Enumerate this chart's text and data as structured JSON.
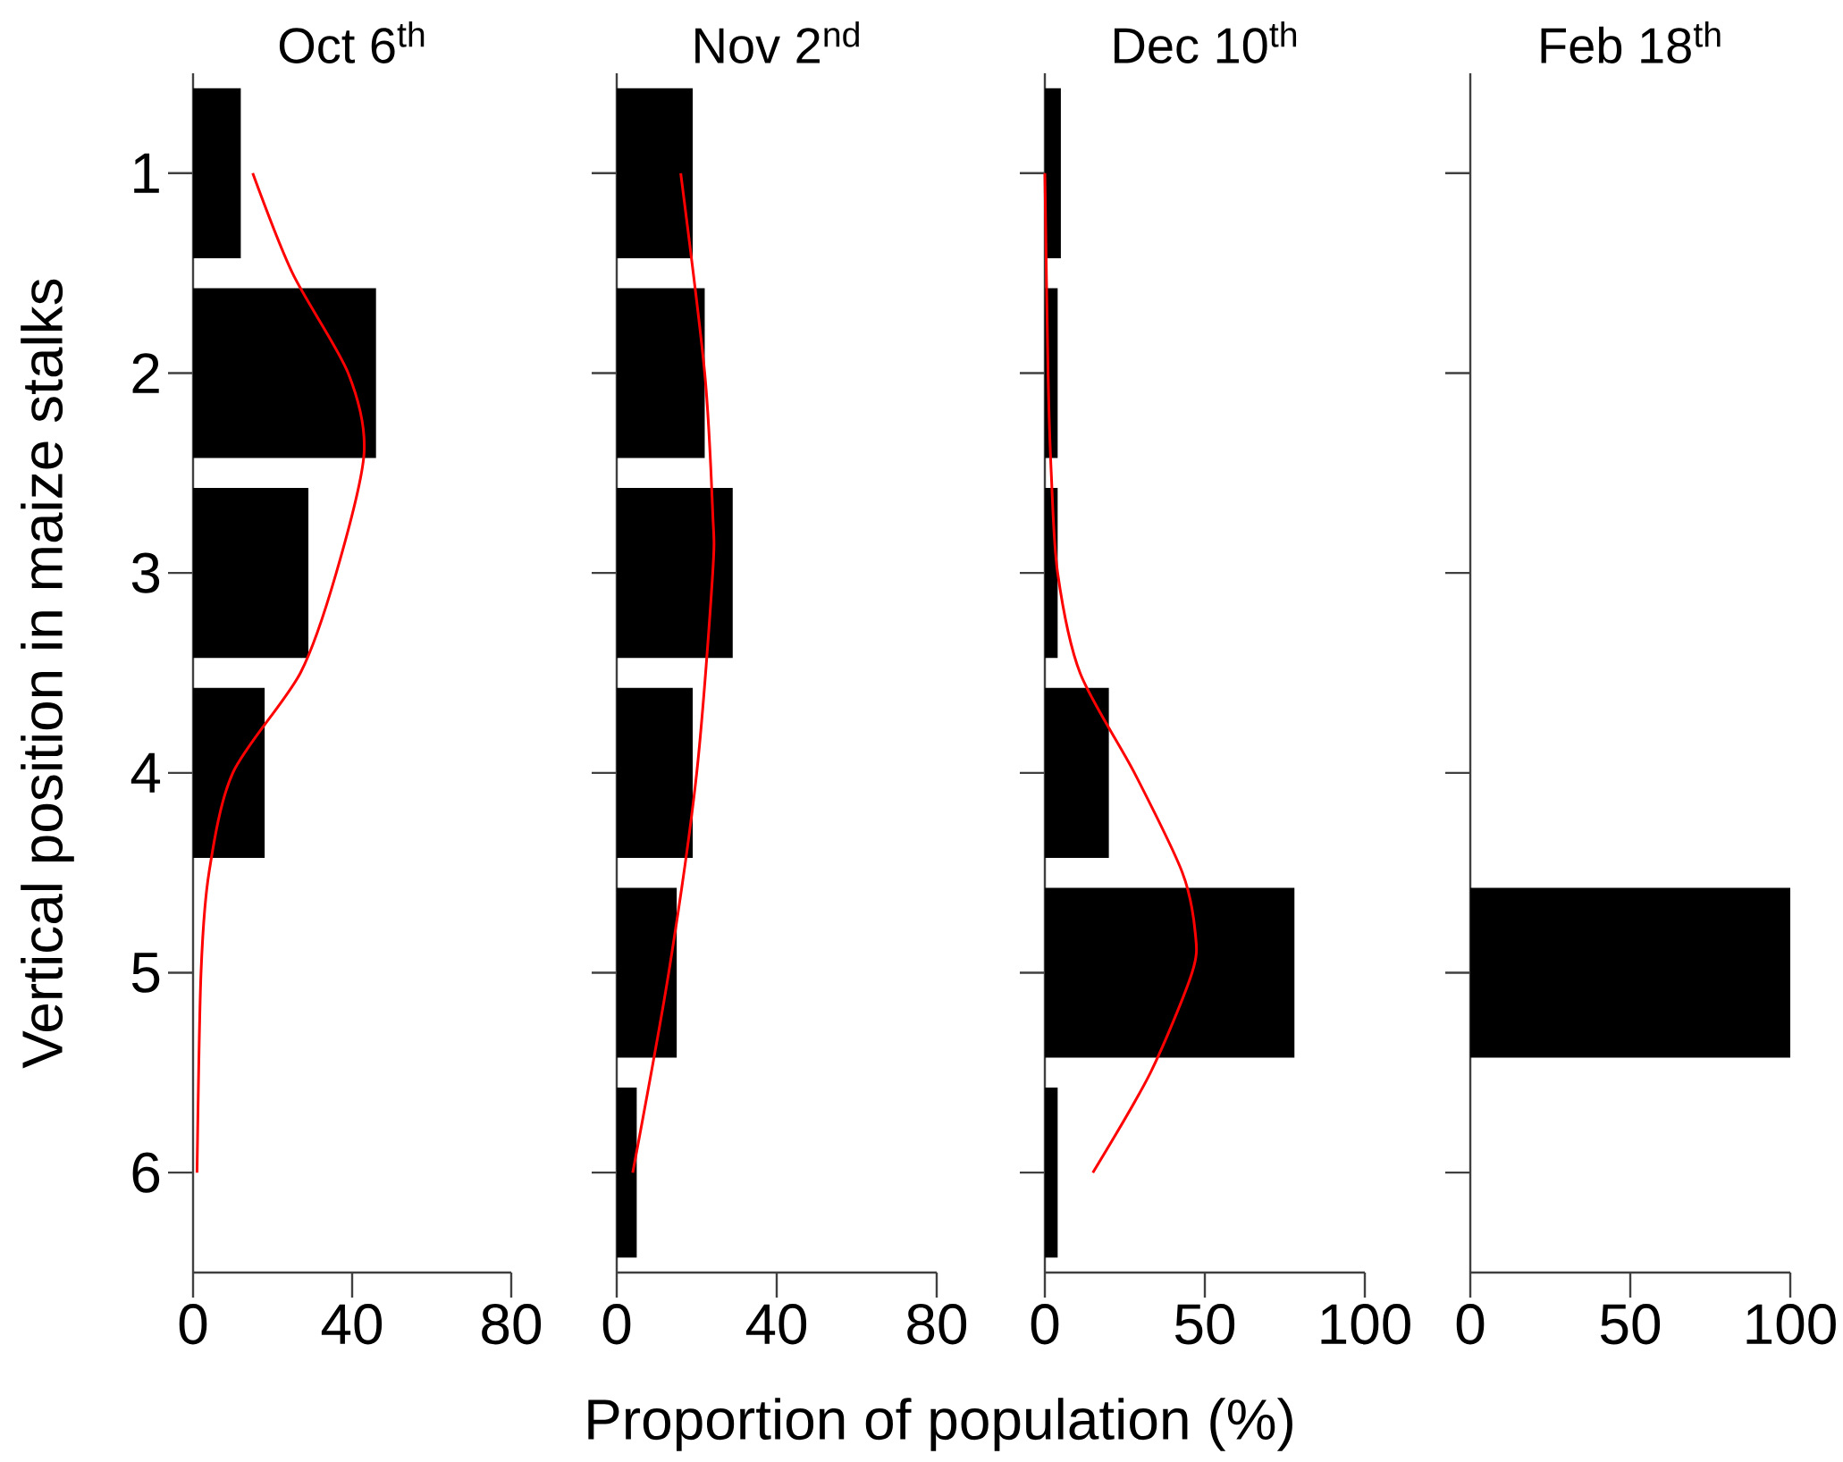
{
  "chart_data": [
    {
      "type": "bar",
      "orientation": "horizontal",
      "title": "Oct 6$^{th}$",
      "ylabel": "Vertical position in maize stalks",
      "x": [
        1,
        2,
        3,
        4,
        5,
        6
      ],
      "xlim": [
        0,
        80
      ],
      "xticks": [
        0,
        40,
        80
      ],
      "ylim": [
        6.5,
        0.5
      ],
      "yticks": [
        1,
        2,
        3,
        4,
        5,
        6
      ],
      "series": [
        {
          "color": "#000000",
          "values": [
            12,
            46,
            29,
            18,
            0,
            0
          ]
        },
        {
          "type": "line",
          "color": "#ff0000",
          "x": [
            1,
            1.5,
            2,
            2.4,
            3,
            3.5,
            4,
            4.5,
            5,
            6
          ],
          "values": [
            15,
            25,
            39,
            43,
            36,
            27,
            10,
            4,
            2,
            1
          ]
        }
      ]
    },
    {
      "type": "bar",
      "orientation": "horizontal",
      "title": "Nov 2$^{nd}$",
      "xlabel": "Proportion of population (%)",
      "x": [
        1,
        2,
        3,
        4,
        5,
        6
      ],
      "xlim": [
        0,
        80
      ],
      "xticks": [
        0,
        40,
        80
      ],
      "ylim": [
        6.5,
        0.5
      ],
      "yticks": [
        1,
        2,
        3,
        4,
        5,
        6
      ],
      "tick_labels": "x",
      "series": [
        {
          "color": "#000000",
          "values": [
            19,
            22,
            29,
            19,
            15,
            5
          ]
        },
        {
          "type": "line",
          "color": "#ff0000",
          "x": [
            1,
            2,
            2.7,
            3,
            4,
            5,
            6
          ],
          "values": [
            16,
            22,
            24,
            24,
            20,
            13,
            4
          ]
        }
      ]
    },
    {
      "type": "bar",
      "orientation": "horizontal",
      "title": "Dec 10$^{th}$",
      "x": [
        1,
        2,
        3,
        4,
        5,
        6
      ],
      "xlim": [
        0,
        100
      ],
      "xticks": [
        0,
        50,
        100
      ],
      "ylim": [
        6.5,
        0.5
      ],
      "yticks": [
        1,
        2,
        3,
        4,
        5,
        6
      ],
      "tick_labels": "x",
      "series": [
        {
          "color": "#000000",
          "values": [
            5,
            4,
            4,
            20,
            78,
            4
          ]
        },
        {
          "type": "line",
          "color": "#ff0000",
          "x": [
            1,
            2,
            2.5,
            3,
            3.5,
            4,
            4.5,
            4.8,
            5,
            5.5,
            6
          ],
          "values": [
            0,
            1,
            2,
            4,
            11,
            28,
            43,
            47,
            46,
            33,
            15
          ]
        }
      ]
    },
    {
      "type": "bar",
      "orientation": "horizontal",
      "title": "Feb 18$^{th}$",
      "x": [
        1,
        2,
        3,
        4,
        5,
        6
      ],
      "xlim": [
        0,
        100
      ],
      "xticks": [
        0,
        50,
        100
      ],
      "ylim": [
        6.5,
        0.5
      ],
      "yticks": [
        1,
        2,
        3,
        4,
        5,
        6
      ],
      "tick_labels": "x",
      "series": [
        {
          "color": "#000000",
          "values": [
            0,
            0,
            0,
            0,
            100,
            0
          ]
        }
      ]
    }
  ]
}
